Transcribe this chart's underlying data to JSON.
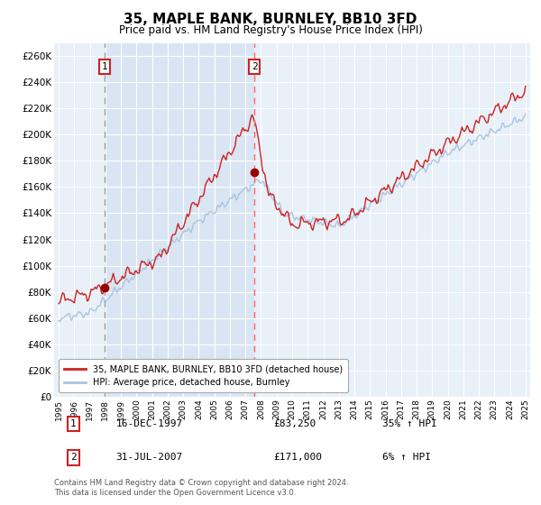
{
  "title": "35, MAPLE BANK, BURNLEY, BB10 3FD",
  "subtitle": "Price paid vs. HM Land Registry's House Price Index (HPI)",
  "hpi_color": "#aac4e0",
  "price_color": "#cc2222",
  "marker_color": "#990000",
  "dashed_line1_color": "#bbbbbb",
  "dashed_line2_color": "#ff6666",
  "background_color": "#e8f0f8",
  "plot_bg": "#e8f0f8",
  "grid_color": "white",
  "ylim": [
    0,
    270000
  ],
  "yticks": [
    0,
    20000,
    40000,
    60000,
    80000,
    100000,
    120000,
    140000,
    160000,
    180000,
    200000,
    220000,
    240000,
    260000
  ],
  "xlim_start": 1995.0,
  "xlim_end": 2025.3,
  "legend_label_price": "35, MAPLE BANK, BURNLEY, BB10 3FD (detached house)",
  "legend_label_hpi": "HPI: Average price, detached house, Burnley",
  "transaction1_date": "16-DEC-1997",
  "transaction1_price": "£83,250",
  "transaction1_hpi": "35% ↑ HPI",
  "transaction2_date": "31-JUL-2007",
  "transaction2_price": "£171,000",
  "transaction2_hpi": "6% ↑ HPI",
  "footer": "Contains HM Land Registry data © Crown copyright and database right 2024.\nThis data is licensed under the Open Government Licence v3.0.",
  "transaction1_year": 1997.96,
  "transaction1_value": 83250,
  "transaction2_year": 2007.58,
  "transaction2_value": 171000
}
